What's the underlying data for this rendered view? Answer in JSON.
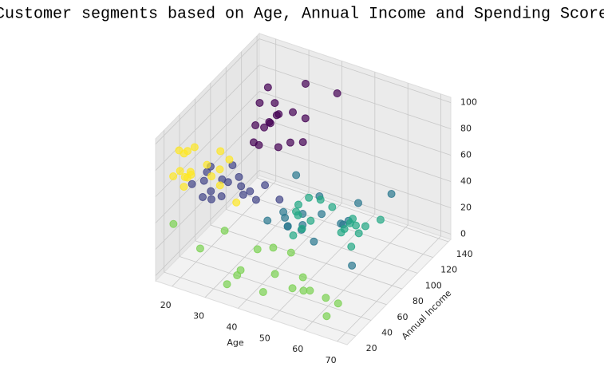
{
  "chart_data": {
    "type": "scatter3d",
    "title": "Customer segments based on Age, Annual Income and Spending Score",
    "xlabel": "Age",
    "ylabel": "Annual Income",
    "xlim": [
      15,
      73
    ],
    "ylim": [
      9,
      143
    ],
    "zlim": [
      -4,
      104
    ],
    "xticks": [
      20,
      30,
      40,
      50,
      60,
      70
    ],
    "yticks": [
      20,
      40,
      60,
      80,
      100,
      120,
      140
    ],
    "zticks": [
      0,
      20,
      40,
      60,
      80,
      100
    ],
    "grid": true,
    "series": [
      {
        "color": "#440154",
        "x": [
          32,
          35,
          30,
          29,
          36,
          33,
          31,
          38,
          34,
          28,
          32,
          39,
          30,
          35,
          27,
          36,
          33,
          40
        ],
        "y": [
          70,
          72,
          74,
          76,
          78,
          79,
          81,
          85,
          87,
          88,
          93,
          97,
          99,
          101,
          103,
          113,
          126,
          137
        ],
        "z": [
          77,
          95,
          88,
          73,
          74,
          90,
          83,
          75,
          92,
          95,
          86,
          69,
          90,
          86,
          97,
          75,
          91,
          83
        ]
      },
      {
        "color": "#414487",
        "x": [
          19,
          22,
          24,
          27,
          21,
          23,
          26,
          31,
          20,
          29,
          25,
          33,
          19,
          28,
          35,
          30,
          24,
          38
        ],
        "y": [
          39,
          40,
          42,
          43,
          46,
          47,
          48,
          54,
          54,
          57,
          60,
          62,
          63,
          64,
          65,
          67,
          70,
          71
        ],
        "z": [
          55,
          47,
          52,
          50,
          55,
          42,
          59,
          48,
          56,
          58,
          49,
          41,
          54,
          46,
          52,
          42,
          55,
          40
        ]
      },
      {
        "color": "#2a788e",
        "x": [
          45,
          40,
          59,
          47,
          38,
          43,
          57,
          32,
          54,
          37,
          47,
          41,
          34,
          44,
          50,
          36,
          52,
          59
        ],
        "y": [
          71,
          73,
          75,
          77,
          78,
          78,
          79,
          81,
          85,
          86,
          87,
          88,
          93,
          97,
          99,
          101,
          113,
          126
        ],
        "z": [
          35,
          20,
          5,
          12,
          22,
          17,
          35,
          13,
          26,
          10,
          27,
          13,
          14,
          32,
          15,
          39,
          24,
          29
        ]
      },
      {
        "color": "#22a884",
        "x": [
          67,
          54,
          63,
          48,
          65,
          49,
          50,
          66,
          68,
          47,
          57,
          53,
          60,
          49,
          63,
          70,
          43,
          59
        ],
        "y": [
          40,
          43,
          44,
          46,
          47,
          48,
          49,
          54,
          54,
          57,
          58,
          60,
          61,
          62,
          63,
          65,
          71,
          76
        ],
        "z": [
          47,
          54,
          52,
          36,
          59,
          51,
          41,
          48,
          55,
          52,
          58,
          59,
          42,
          56,
          46,
          55,
          35,
          40
        ]
      },
      {
        "color": "#7ad151",
        "x": [
          19,
          35,
          45,
          64,
          67,
          58,
          37,
          52,
          35,
          46,
          54,
          45,
          40,
          60,
          53,
          49,
          25,
          31
        ],
        "y": [
          15,
          16,
          20,
          21,
          23,
          25,
          25,
          28,
          29,
          31,
          33,
          33,
          34,
          37,
          38,
          39,
          24,
          30
        ],
        "z": [
          39,
          6,
          6,
          3,
          14,
          15,
          13,
          10,
          5,
          14,
          17,
          32,
          26,
          4,
          3,
          28,
          20,
          35
        ]
      },
      {
        "color": "#fde725",
        "x": [
          21,
          23,
          22,
          20,
          18,
          35,
          23,
          21,
          24,
          31,
          22,
          35,
          30,
          20,
          27,
          29,
          18,
          24
        ],
        "y": [
          15,
          16,
          17,
          18,
          19,
          19,
          20,
          20,
          21,
          24,
          25,
          28,
          28,
          29,
          30,
          33,
          33,
          37
        ],
        "z": [
          81,
          77,
          76,
          94,
          72,
          99,
          79,
          66,
          98,
          73,
          73,
          61,
          82,
          87,
          73,
          92,
          81,
          75
        ]
      }
    ]
  }
}
